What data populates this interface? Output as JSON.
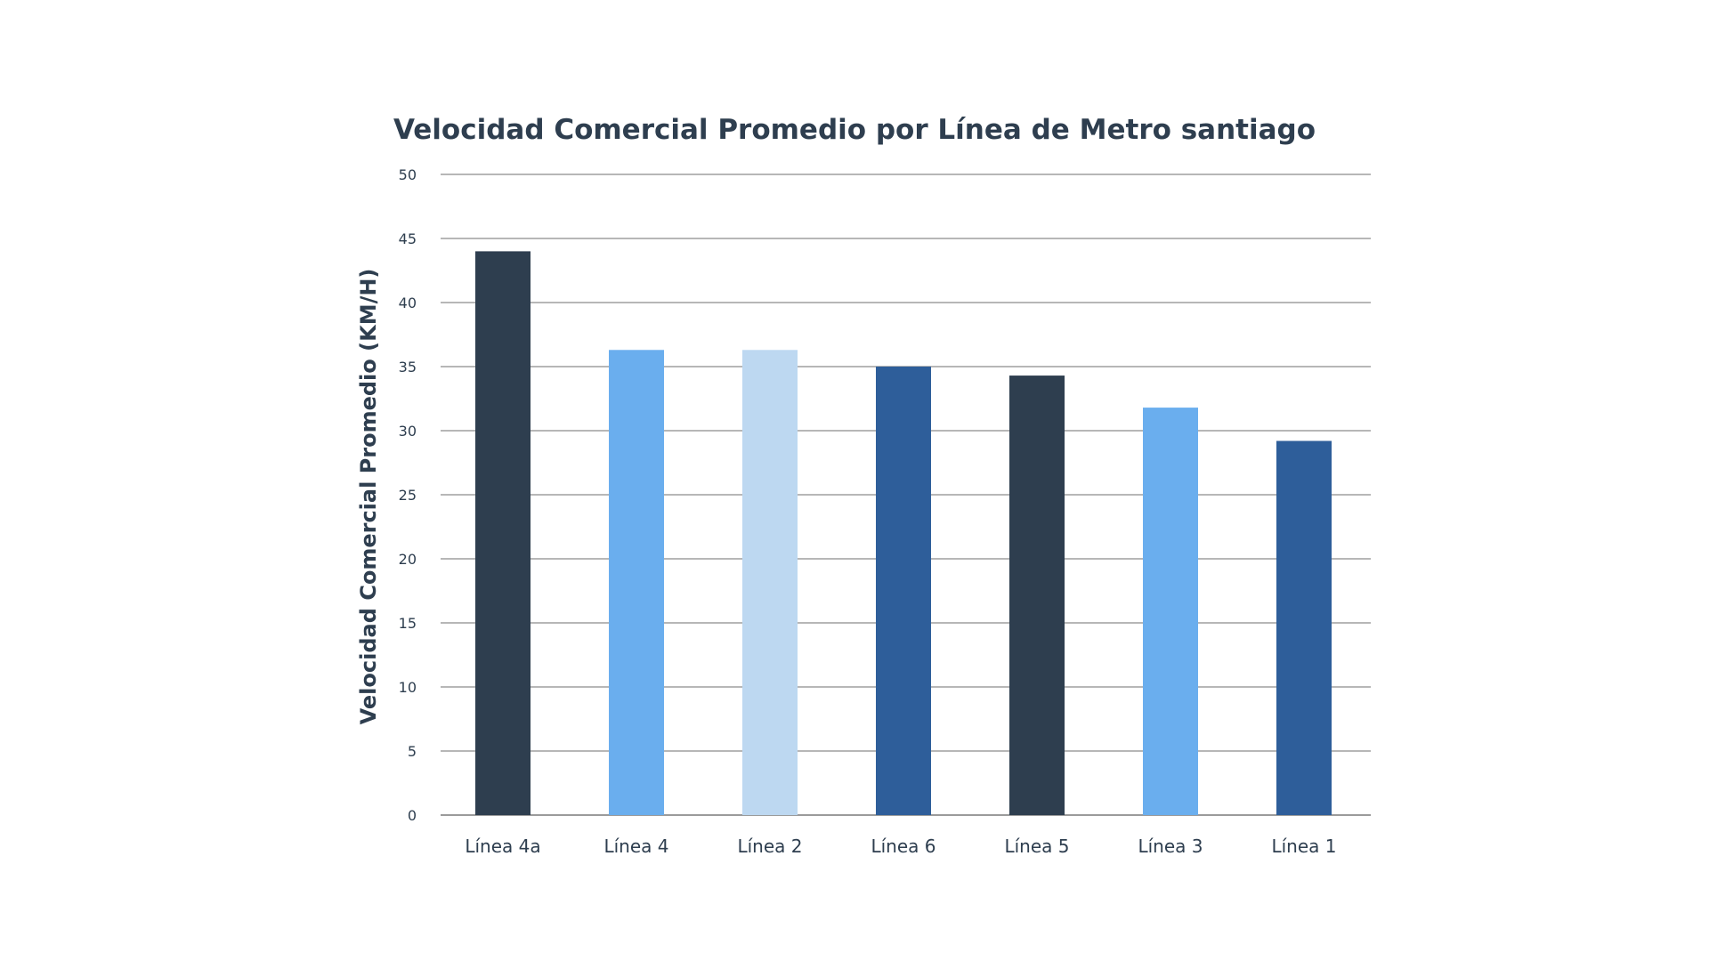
{
  "chart_data": {
    "type": "bar",
    "title": "Velocidad Comercial Promedio por Línea de Metro santiago",
    "xlabel": "",
    "ylabel": "Velocidad Comercial Promedio (KM/H)",
    "categories": [
      "Línea 4a",
      "Línea 4",
      "Línea 2",
      "Línea 6",
      "Línea 5",
      "Línea 3",
      "Línea 1"
    ],
    "values": [
      44,
      36.3,
      36.3,
      35,
      34.3,
      31.8,
      29.2
    ],
    "colors": [
      "#2e3e4f",
      "#6aaeee",
      "#bdd8f1",
      "#2e5e9a",
      "#2e3e4f",
      "#6aaeee",
      "#2e5e9a"
    ],
    "ylim": [
      0,
      50
    ],
    "yticks": [
      "0",
      "5",
      "10",
      "15",
      "20",
      "25",
      "30",
      "35",
      "40",
      "45",
      "50"
    ],
    "grid": true,
    "legend": "none"
  }
}
